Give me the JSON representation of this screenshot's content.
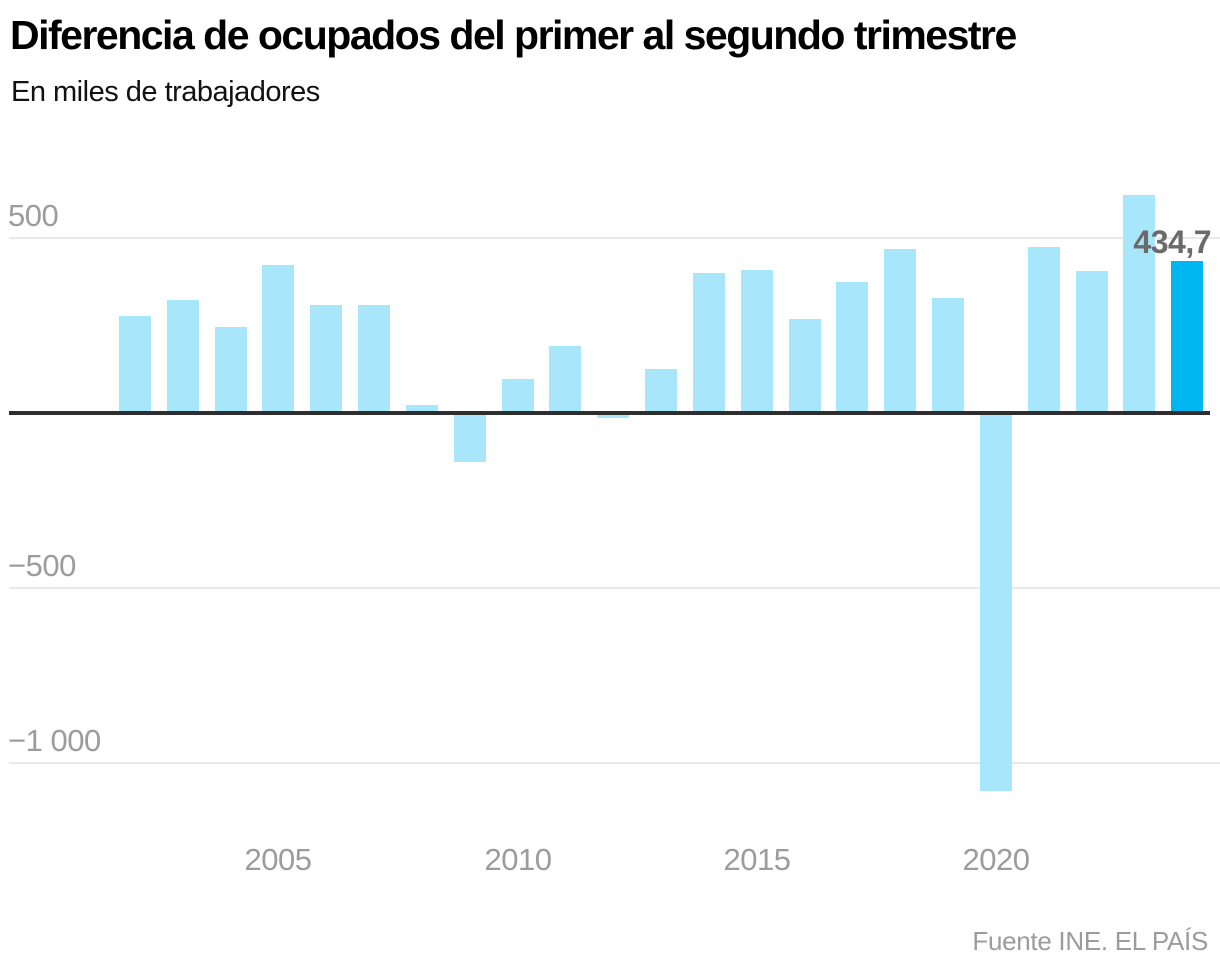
{
  "header": {
    "title": "Diferencia de ocupados del primer al segundo trimestre",
    "subtitle": "En miles de trabajadores"
  },
  "annotation": {
    "highlight_value_label": "434,7"
  },
  "source": "Fuente INE. EL PAÍS",
  "colors": {
    "bar": "#a8e6fb",
    "bar_highlight": "#00b6f1",
    "zero_axis": "#2e2e2e",
    "gridline": "#e9e9e9",
    "tick_text": "#9c9c9c",
    "annotation_text": "#6b6b6b",
    "title_text": "#000000",
    "subtitle_text": "#111111"
  },
  "chart_data": {
    "type": "bar",
    "title": "Diferencia de ocupados del primer al segundo trimestre",
    "subtitle": "En miles de trabajadores",
    "unit": "miles de trabajadores",
    "x": [
      2002,
      2003,
      2004,
      2005,
      2006,
      2007,
      2008,
      2009,
      2010,
      2011,
      2012,
      2013,
      2014,
      2015,
      2016,
      2017,
      2018,
      2019,
      2020,
      2021,
      2022,
      2023,
      2024
    ],
    "values": [
      278,
      324,
      246,
      424,
      310,
      310,
      24,
      -133,
      97,
      192,
      -8,
      127,
      399,
      408,
      270,
      373,
      468,
      330,
      -1073,
      474,
      407,
      622,
      434.7
    ],
    "highlight_index": 22,
    "highlight_label": "434,7",
    "y_ticks": [
      {
        "value": 500,
        "label": "500"
      },
      {
        "value": -500,
        "label": "−500"
      },
      {
        "value": -1000,
        "label": "−1 000"
      }
    ],
    "x_ticks": [
      {
        "year": 2005,
        "label": "2005"
      },
      {
        "year": 2010,
        "label": "2010"
      },
      {
        "year": 2015,
        "label": "2015"
      },
      {
        "year": 2020,
        "label": "2020"
      }
    ],
    "ylim": [
      -1150,
      660
    ],
    "grid": true,
    "legend": false
  }
}
